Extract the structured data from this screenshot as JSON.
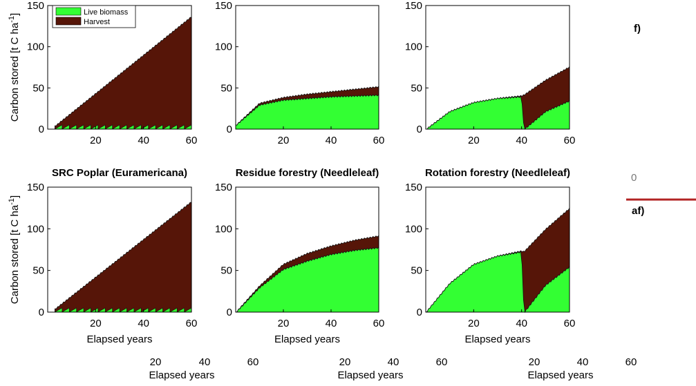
{
  "colors": {
    "live": "#33ff33",
    "harvest": "#561508",
    "edge": "#111111",
    "redline": "#b22222"
  },
  "legend": {
    "items": [
      {
        "label": "Live biomass",
        "color": "#33ff33"
      },
      {
        "label": "Harvest",
        "color": "#561508"
      }
    ]
  },
  "ylabel": "Carbon stored [t C ha",
  "ylabel_sup": "-1",
  "ghost": {
    "top_right_text": "f)",
    "mid_right_text": "af)",
    "mid_zero": "0",
    "bottom_ticks": [
      "20",
      "40",
      "60",
      "20",
      "40",
      "60",
      "20",
      "40",
      "60"
    ],
    "bottom_xlabels": [
      "Elapsed years",
      "Elapsed years",
      "Elapsed years"
    ]
  },
  "chart_data": [
    {
      "type": "area",
      "title": "",
      "xlabel": "",
      "ylabel": "Carbon stored [t C ha-1]",
      "xlim": [
        0,
        60
      ],
      "ylim": [
        0,
        150
      ],
      "xticks": [
        20,
        40,
        60
      ],
      "yticks": [
        0,
        50,
        100,
        150
      ],
      "xticks_shown": [
        "20",
        "40",
        "60"
      ],
      "series": [
        {
          "name": "Live biomass",
          "x": [
            3,
            60
          ],
          "values": [
            2,
            2
          ]
        },
        {
          "name": "Harvest",
          "x": [
            3,
            60
          ],
          "values": [
            4,
            137
          ]
        }
      ]
    },
    {
      "type": "area",
      "title": "",
      "xlabel": "",
      "xlim": [
        0,
        60
      ],
      "ylim": [
        0,
        150
      ],
      "xticks": [
        20,
        40,
        60
      ],
      "yticks": [
        0,
        50,
        100,
        150
      ],
      "series": [
        {
          "name": "Live biomass",
          "x": [
            0,
            10,
            20,
            30,
            40,
            50,
            60
          ],
          "values": [
            5,
            30,
            36,
            38,
            40,
            41,
            42
          ]
        },
        {
          "name": "Harvest",
          "x": [
            0,
            10,
            20,
            30,
            40,
            50,
            60
          ],
          "values": [
            5,
            32,
            39,
            43,
            46,
            49,
            52
          ]
        }
      ]
    },
    {
      "type": "area",
      "title": "",
      "xlabel": "",
      "xlim": [
        0,
        60
      ],
      "ylim": [
        0,
        150
      ],
      "xticks": [
        20,
        40,
        60
      ],
      "yticks": [
        0,
        50,
        100,
        150
      ],
      "series": [
        {
          "name": "Live biomass",
          "x": [
            0,
            10,
            20,
            30,
            40,
            41,
            50,
            60
          ],
          "values": [
            0,
            22,
            33,
            38,
            40,
            0,
            22,
            35
          ]
        },
        {
          "name": "Harvest",
          "x": [
            0,
            10,
            20,
            30,
            40,
            41,
            50,
            60
          ],
          "values": [
            0,
            22,
            33,
            38,
            41,
            42,
            60,
            76
          ]
        }
      ]
    },
    {
      "type": "area",
      "title": "SRC Poplar (Euramericana)",
      "xlabel": "Elapsed years",
      "ylabel": "Carbon stored [t C ha-1]",
      "xlim": [
        0,
        60
      ],
      "ylim": [
        0,
        150
      ],
      "xticks": [
        20,
        40,
        60
      ],
      "yticks": [
        0,
        50,
        100,
        150
      ],
      "series": [
        {
          "name": "Live biomass",
          "x": [
            3,
            60
          ],
          "values": [
            2,
            2
          ]
        },
        {
          "name": "Harvest",
          "x": [
            3,
            60
          ],
          "values": [
            4,
            133
          ]
        }
      ]
    },
    {
      "type": "area",
      "title": "Residue forestry (Needleleaf)",
      "xlabel": "Elapsed years",
      "xlim": [
        0,
        60
      ],
      "ylim": [
        0,
        150
      ],
      "xticks": [
        20,
        40,
        60
      ],
      "yticks": [
        0,
        50,
        100,
        150
      ],
      "series": [
        {
          "name": "Live biomass",
          "x": [
            0,
            10,
            20,
            30,
            40,
            50,
            60
          ],
          "values": [
            0,
            30,
            52,
            62,
            70,
            75,
            78
          ]
        },
        {
          "name": "Harvest",
          "x": [
            0,
            10,
            20,
            30,
            40,
            50,
            60
          ],
          "values": [
            0,
            32,
            58,
            71,
            80,
            87,
            92
          ]
        }
      ]
    },
    {
      "type": "area",
      "title": "Rotation forestry (Needleleaf)",
      "xlabel": "Elapsed years",
      "xlim": [
        0,
        60
      ],
      "ylim": [
        0,
        150
      ],
      "xticks": [
        20,
        40,
        60
      ],
      "yticks": [
        0,
        50,
        100,
        150
      ],
      "series": [
        {
          "name": "Live biomass",
          "x": [
            0,
            10,
            20,
            30,
            40,
            41,
            50,
            60
          ],
          "values": [
            0,
            35,
            58,
            68,
            73,
            0,
            33,
            55
          ]
        },
        {
          "name": "Harvest",
          "x": [
            0,
            10,
            20,
            30,
            40,
            41,
            50,
            60
          ],
          "values": [
            0,
            35,
            58,
            68,
            74,
            73,
            100,
            125
          ]
        }
      ]
    }
  ]
}
